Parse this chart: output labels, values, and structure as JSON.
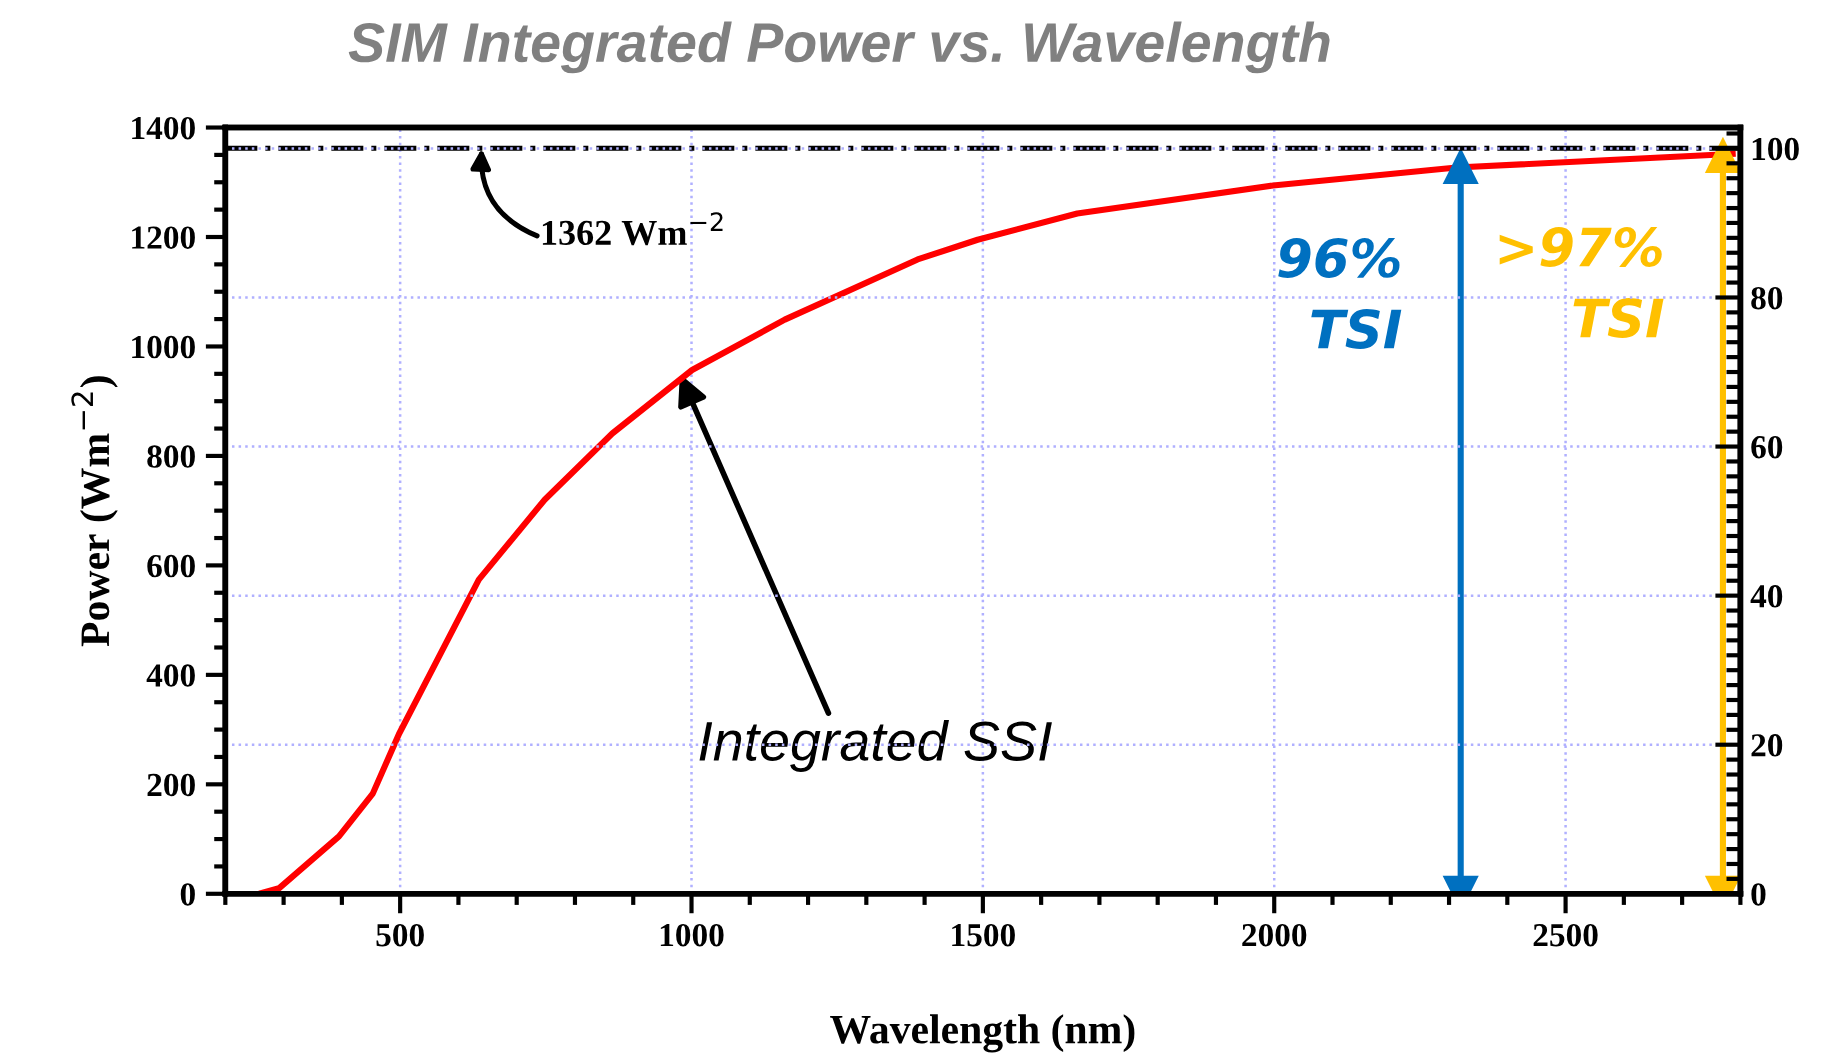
{
  "chart_data": {
    "type": "line",
    "title": "SIM Integrated Power vs. Wavelength",
    "xlabel": "Wavelength (nm)",
    "ylabel": "Power (Wm$^{−2}$)",
    "xlim": [
      200,
      2800
    ],
    "xticks": [
      500,
      1000,
      1500,
      2000,
      2500
    ],
    "ylim": [
      0,
      1400
    ],
    "yticks": [
      0,
      200,
      400,
      600,
      800,
      1000,
      1200,
      1400
    ],
    "y2lim": [
      0,
      102.8
    ],
    "y2ticks": [
      0,
      20,
      40,
      60,
      80,
      100
    ],
    "grid": true,
    "legend": false,
    "series": [
      {
        "color": "#ff0000",
        "x": [
          258,
          292,
          395,
          453,
          498,
          635,
          748,
          864,
          1001,
          1160,
          1388,
          1491,
          1662,
          1998,
          2313,
          2792
        ],
        "values": [
          0,
          10,
          105,
          183,
          292,
          574,
          720,
          841,
          957,
          1049,
          1159,
          1195,
          1243,
          1294,
          1327,
          1352
        ]
      },
      {
        "name": "96%\nTSI",
        "color": "#0070c0",
        "x": [
          2320,
          2320
        ],
        "values": [
          0,
          1330
        ],
        "marker": "triangle"
      },
      {
        "name": ">97%\nTSI",
        "color": "#ffc000",
        "x": [
          2770,
          2770
        ],
        "values": [
          0,
          1350
        ],
        "marker": "triangle"
      }
    ],
    "ref_lines": [
      {
        "axis": "y",
        "value": 1362,
        "label": "1362 Wm$^{−2}$",
        "color": "#000000",
        "line_style": "dashdot"
      }
    ],
    "annotations": [
      {
        "text": "Integrated SSI",
        "x": 980,
        "y": 950
      }
    ]
  }
}
